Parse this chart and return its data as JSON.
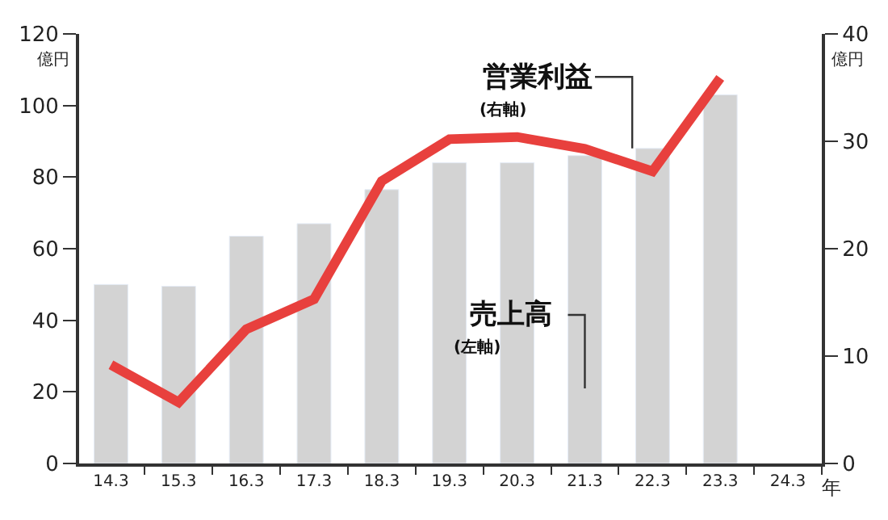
{
  "chart_data": {
    "type": "bar",
    "categories": [
      "14.3",
      "15.3",
      "16.3",
      "17.3",
      "18.3",
      "19.3",
      "20.3",
      "21.3",
      "22.3",
      "23.3",
      "24.3"
    ],
    "series": [
      {
        "name": "売上高",
        "color": "#d3d3d3",
        "values": [
          50,
          49.5,
          63.5,
          67,
          76.5,
          84,
          84,
          86,
          88,
          103,
          null
        ]
      },
      {
        "name": "営業利益",
        "type": "line",
        "axis": "y2",
        "color": "#e8403d",
        "values": [
          9.2,
          5.7,
          12.5,
          15.3,
          26.3,
          30.2,
          30.4,
          29.3,
          27.2,
          35.9,
          null
        ]
      }
    ],
    "annotations": [
      "(左軸)",
      "(右軸)"
    ],
    "xlabel": "年",
    "ylabel": "億円",
    "y2label": "億円",
    "ylim": [
      0,
      120
    ],
    "yticks": [
      0,
      20,
      40,
      60,
      80,
      100,
      120
    ],
    "y2lim": [
      0,
      40
    ],
    "y2ticks": [
      0,
      10,
      20,
      30,
      40
    ],
    "grid": false,
    "legend": false,
    "marker": "none",
    "line_style": "solid"
  }
}
